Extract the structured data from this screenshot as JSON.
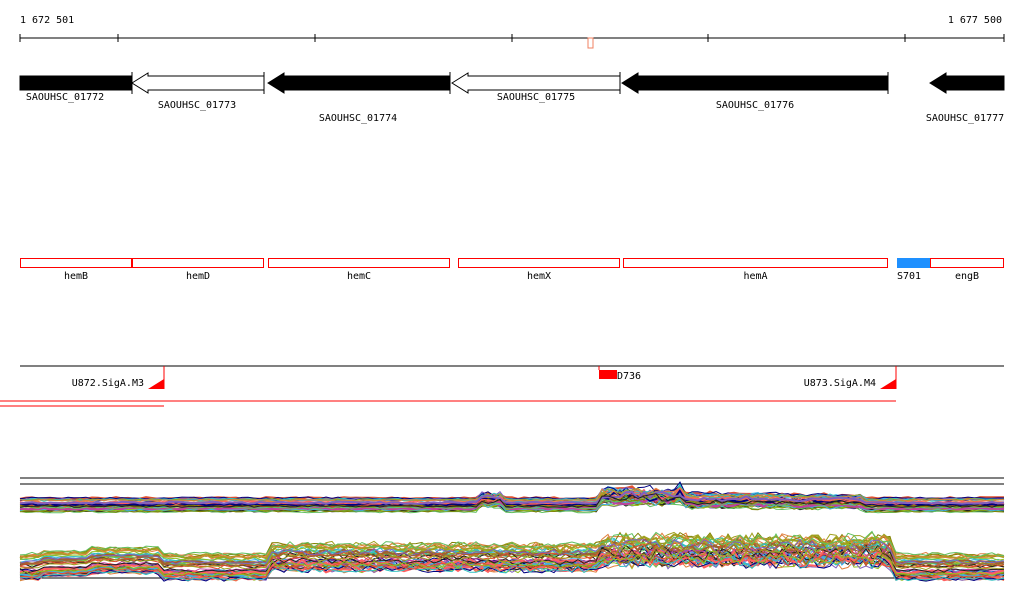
{
  "ruler": {
    "start_label": "1 672 501",
    "end_label": "1 677 500"
  },
  "genes": [
    {
      "name": "SAOUHSC_01772",
      "strand": "-",
      "style": "filled"
    },
    {
      "name": "SAOUHSC_01773",
      "strand": "-",
      "style": "open"
    },
    {
      "name": "SAOUHSC_01774",
      "strand": "-",
      "style": "filled"
    },
    {
      "name": "SAOUHSC_01775",
      "strand": "-",
      "style": "open"
    },
    {
      "name": "SAOUHSC_01776",
      "strand": "-",
      "style": "filled"
    },
    {
      "name": "SAOUHSC_01777",
      "strand": "-",
      "style": "filled"
    }
  ],
  "annotations": [
    {
      "name": "hemB",
      "color": "#ff0000"
    },
    {
      "name": "hemD",
      "color": "#ff0000"
    },
    {
      "name": "hemC",
      "color": "#ff0000"
    },
    {
      "name": "hemX",
      "color": "#ff0000"
    },
    {
      "name": "hemA",
      "color": "#ff0000"
    },
    {
      "name": "S701",
      "color": "#1e90ff"
    },
    {
      "name": "engB",
      "color": "#ff0000"
    }
  ],
  "features": {
    "terminator_1": "U872.SigA.M3",
    "terminator_2": "U873.SigA.M4",
    "segment": "D736"
  },
  "colors": {
    "feature": "#ff0000",
    "marker": "#f08060",
    "srna": "#1e90ff"
  },
  "expression_palette": [
    "#e05030",
    "#90c020",
    "#a0a020",
    "#40b0e0",
    "#c040a0",
    "#000080",
    "#e08040",
    "#60c060",
    "#808000",
    "#ff6060",
    "#8060c0",
    "#202020",
    "#a06030",
    "#30c0c0"
  ]
}
